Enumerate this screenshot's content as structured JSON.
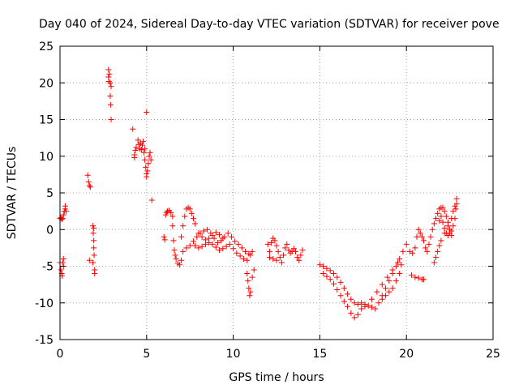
{
  "chart_data": {
    "type": "scatter",
    "title": "Day 040 of 2024, Sidereal Day-to-day VTEC variation (SDTVAR) for receiver pove",
    "xlabel": "GPS time / hours",
    "ylabel": "SDTVAR / TECUs",
    "xlim": [
      0,
      25
    ],
    "ylim": [
      -15,
      25
    ],
    "xticks": [
      0,
      5,
      10,
      15,
      20,
      25
    ],
    "yticks": [
      -15,
      -10,
      -5,
      0,
      5,
      10,
      15,
      20,
      25
    ],
    "xtick_labels": [
      "0",
      "5",
      "10",
      "15",
      "20",
      "25"
    ],
    "ytick_labels": [
      "-15",
      "-10",
      "-5",
      "0",
      "5",
      "10",
      "15",
      "20",
      "25"
    ],
    "grid": true,
    "marker": "+",
    "color": "#ff0000",
    "series": [
      {
        "name": "SDTVAR",
        "points": [
          [
            0.0,
            1.5
          ],
          [
            0.05,
            1.6
          ],
          [
            0.1,
            1.4
          ],
          [
            0.15,
            1.5
          ],
          [
            0.2,
            2.0
          ],
          [
            0.25,
            2.5
          ],
          [
            0.3,
            3.2
          ],
          [
            0.3,
            2.8
          ],
          [
            0.35,
            2.5
          ],
          [
            0.0,
            -4.5
          ],
          [
            0.05,
            -5.5
          ],
          [
            0.1,
            -6.0
          ],
          [
            0.12,
            -6.3
          ],
          [
            0.15,
            -4.5
          ],
          [
            0.2,
            -5.0
          ],
          [
            0.2,
            -4.0
          ],
          [
            1.6,
            7.4
          ],
          [
            1.65,
            6.5
          ],
          [
            1.7,
            6.0
          ],
          [
            1.75,
            5.8
          ],
          [
            1.7,
            -4.2
          ],
          [
            1.9,
            0.5
          ],
          [
            1.92,
            -0.5
          ],
          [
            1.95,
            -1.5
          ],
          [
            1.95,
            -2.5
          ],
          [
            1.97,
            -3.5
          ],
          [
            1.9,
            -4.5
          ],
          [
            2.0,
            -5.5
          ],
          [
            2.0,
            -6.0
          ],
          [
            1.95,
            0.2
          ],
          [
            2.8,
            21.8
          ],
          [
            2.85,
            21.2
          ],
          [
            2.8,
            20.8
          ],
          [
            2.82,
            20.2
          ],
          [
            2.9,
            20.0
          ],
          [
            2.95,
            19.5
          ],
          [
            2.9,
            18.2
          ],
          [
            2.92,
            17.0
          ],
          [
            2.95,
            15.0
          ],
          [
            4.2,
            13.7
          ],
          [
            4.3,
            10.2
          ],
          [
            4.35,
            10.8
          ],
          [
            4.4,
            11.2
          ],
          [
            4.5,
            12.2
          ],
          [
            4.55,
            11.6
          ],
          [
            4.6,
            11.0
          ],
          [
            4.65,
            11.8
          ],
          [
            4.7,
            10.9
          ],
          [
            4.75,
            11.5
          ],
          [
            4.8,
            12.0
          ],
          [
            4.85,
            10.5
          ],
          [
            4.9,
            9.5
          ],
          [
            4.95,
            8.5
          ],
          [
            5.0,
            7.6
          ],
          [
            5.05,
            8.0
          ],
          [
            5.1,
            9.0
          ],
          [
            5.15,
            10.0
          ],
          [
            5.2,
            10.5
          ],
          [
            5.25,
            9.5
          ],
          [
            5.0,
            16.0
          ],
          [
            5.3,
            4.0
          ],
          [
            4.3,
            9.8
          ],
          [
            4.9,
            11.0
          ],
          [
            5.0,
            7.2
          ],
          [
            6.0,
            -1.0
          ],
          [
            6.05,
            -1.4
          ],
          [
            6.1,
            2.0
          ],
          [
            6.15,
            2.3
          ],
          [
            6.2,
            2.5
          ],
          [
            6.3,
            2.6
          ],
          [
            6.4,
            2.3
          ],
          [
            6.5,
            1.8
          ],
          [
            6.5,
            0.5
          ],
          [
            6.55,
            -1.5
          ],
          [
            6.6,
            -2.8
          ],
          [
            6.65,
            -3.5
          ],
          [
            6.7,
            -4.0
          ],
          [
            6.8,
            -4.6
          ],
          [
            6.9,
            -4.8
          ],
          [
            7.0,
            -4.2
          ],
          [
            7.0,
            -1.0
          ],
          [
            7.1,
            0.5
          ],
          [
            7.2,
            1.8
          ],
          [
            7.3,
            2.8
          ],
          [
            7.4,
            3.0
          ],
          [
            7.5,
            2.8
          ],
          [
            7.6,
            2.2
          ],
          [
            7.7,
            1.5
          ],
          [
            7.8,
            0.8
          ],
          [
            7.1,
            -3.0
          ],
          [
            7.3,
            -2.5
          ],
          [
            7.5,
            -2.2
          ],
          [
            7.7,
            -1.6
          ],
          [
            7.9,
            -1.0
          ],
          [
            8.1,
            -0.5
          ],
          [
            8.3,
            -0.2
          ],
          [
            8.5,
            0.0
          ],
          [
            8.7,
            -0.5
          ],
          [
            8.9,
            -1.2
          ],
          [
            9.1,
            -1.8
          ],
          [
            9.3,
            -1.5
          ],
          [
            9.5,
            -1.0
          ],
          [
            9.7,
            -0.5
          ],
          [
            9.9,
            -1.0
          ],
          [
            10.1,
            -1.6
          ],
          [
            10.3,
            -2.0
          ],
          [
            10.5,
            -2.5
          ],
          [
            10.7,
            -3.0
          ],
          [
            10.9,
            -3.3
          ],
          [
            11.0,
            -3.5
          ],
          [
            11.1,
            -3.0
          ],
          [
            7.8,
            -2.2
          ],
          [
            8.0,
            -2.5
          ],
          [
            8.2,
            -2.3
          ],
          [
            8.4,
            -2.0
          ],
          [
            8.6,
            -1.8
          ],
          [
            8.8,
            -2.0
          ],
          [
            9.0,
            -2.4
          ],
          [
            9.2,
            -2.8
          ],
          [
            9.4,
            -2.6
          ],
          [
            9.6,
            -2.3
          ],
          [
            9.8,
            -2.0
          ],
          [
            10.0,
            -2.6
          ],
          [
            10.2,
            -3.2
          ],
          [
            10.4,
            -3.6
          ],
          [
            10.6,
            -4.0
          ],
          [
            10.8,
            -4.2
          ],
          [
            8.0,
            -0.5
          ],
          [
            8.2,
            -1.0
          ],
          [
            8.4,
            -1.4
          ],
          [
            8.6,
            -1.2
          ],
          [
            8.8,
            -0.8
          ],
          [
            9.0,
            -0.4
          ],
          [
            9.2,
            -0.7
          ],
          [
            9.4,
            -1.2
          ],
          [
            10.8,
            -6.0
          ],
          [
            10.85,
            -7.0
          ],
          [
            10.9,
            -8.0
          ],
          [
            10.95,
            -9.0
          ],
          [
            11.0,
            -8.5
          ],
          [
            11.1,
            -6.5
          ],
          [
            11.2,
            -5.5
          ],
          [
            12.0,
            -2.0
          ],
          [
            12.1,
            -3.0
          ],
          [
            12.2,
            -1.8
          ],
          [
            12.3,
            -1.2
          ],
          [
            12.4,
            -1.5
          ],
          [
            12.5,
            -2.2
          ],
          [
            12.6,
            -3.0
          ],
          [
            12.7,
            -3.8
          ],
          [
            12.8,
            -4.5
          ],
          [
            12.9,
            -3.5
          ],
          [
            13.0,
            -2.5
          ],
          [
            13.1,
            -2.0
          ],
          [
            13.2,
            -2.8
          ],
          [
            13.3,
            -3.2
          ],
          [
            13.4,
            -3.0
          ],
          [
            13.5,
            -2.6
          ],
          [
            13.6,
            -3.0
          ],
          [
            13.7,
            -3.8
          ],
          [
            13.8,
            -4.2
          ],
          [
            13.9,
            -3.5
          ],
          [
            14.0,
            -2.8
          ],
          [
            12.1,
            -3.8
          ],
          [
            12.3,
            -4.0
          ],
          [
            12.5,
            -4.2
          ],
          [
            15.0,
            -4.8
          ],
          [
            15.2,
            -5.0
          ],
          [
            15.4,
            -5.3
          ],
          [
            15.6,
            -5.6
          ],
          [
            15.8,
            -6.0
          ],
          [
            16.0,
            -6.5
          ],
          [
            16.2,
            -7.2
          ],
          [
            16.4,
            -8.0
          ],
          [
            16.6,
            -8.8
          ],
          [
            16.8,
            -9.5
          ],
          [
            17.0,
            -10.0
          ],
          [
            15.2,
            -6.0
          ],
          [
            15.4,
            -6.4
          ],
          [
            15.6,
            -6.8
          ],
          [
            15.8,
            -7.4
          ],
          [
            16.0,
            -8.2
          ],
          [
            16.2,
            -9.0
          ],
          [
            16.4,
            -9.8
          ],
          [
            16.6,
            -10.5
          ],
          [
            16.8,
            -11.4
          ],
          [
            17.0,
            -12.0
          ],
          [
            17.2,
            -11.6
          ],
          [
            17.4,
            -10.8
          ],
          [
            17.6,
            -10.5
          ],
          [
            17.8,
            -10.4
          ],
          [
            18.0,
            -10.6
          ],
          [
            18.2,
            -10.8
          ],
          [
            18.4,
            -10.0
          ],
          [
            18.6,
            -9.0
          ],
          [
            18.8,
            -8.0
          ],
          [
            19.0,
            -7.0
          ],
          [
            19.2,
            -6.0
          ],
          [
            19.4,
            -5.0
          ],
          [
            19.6,
            -4.0
          ],
          [
            19.8,
            -3.0
          ],
          [
            20.0,
            -2.0
          ],
          [
            17.2,
            -10.2
          ],
          [
            17.4,
            -10.0
          ],
          [
            17.6,
            -10.2
          ],
          [
            18.0,
            -9.5
          ],
          [
            18.3,
            -8.5
          ],
          [
            18.6,
            -7.5
          ],
          [
            18.9,
            -6.5
          ],
          [
            19.2,
            -5.5
          ],
          [
            19.5,
            -4.5
          ],
          [
            19.7,
            -4.8
          ],
          [
            19.6,
            -6.0
          ],
          [
            19.4,
            -7.0
          ],
          [
            19.2,
            -8.0
          ],
          [
            19.0,
            -8.5
          ],
          [
            18.8,
            -9.0
          ],
          [
            18.6,
            -9.5
          ],
          [
            20.2,
            -3.0
          ],
          [
            20.35,
            -3.2
          ],
          [
            20.5,
            -2.5
          ],
          [
            20.6,
            -1.0
          ],
          [
            20.7,
            0.0
          ],
          [
            20.8,
            -0.5
          ],
          [
            20.9,
            -1.0
          ],
          [
            21.0,
            -1.5
          ],
          [
            21.1,
            -2.5
          ],
          [
            21.2,
            -3.0
          ],
          [
            21.3,
            -2.0
          ],
          [
            21.4,
            -1.0
          ],
          [
            21.5,
            0.0
          ],
          [
            21.6,
            0.8
          ],
          [
            21.7,
            1.5
          ],
          [
            21.8,
            2.2
          ],
          [
            21.9,
            2.8
          ],
          [
            22.0,
            3.0
          ],
          [
            22.1,
            3.0
          ],
          [
            22.2,
            2.5
          ],
          [
            22.3,
            1.8
          ],
          [
            22.4,
            1.0
          ],
          [
            22.5,
            0.0
          ],
          [
            22.6,
            -0.8
          ],
          [
            20.3,
            -6.2
          ],
          [
            20.5,
            -6.5
          ],
          [
            20.7,
            -6.6
          ],
          [
            20.9,
            -6.8
          ],
          [
            21.0,
            -6.8
          ],
          [
            21.6,
            -4.5
          ],
          [
            21.7,
            -3.8
          ],
          [
            21.8,
            -3.0
          ],
          [
            21.9,
            -2.2
          ],
          [
            22.0,
            -1.5
          ],
          [
            22.2,
            -0.5
          ],
          [
            22.4,
            0.5
          ],
          [
            22.6,
            1.5
          ],
          [
            22.7,
            2.5
          ],
          [
            22.8,
            3.2
          ],
          [
            22.9,
            4.2
          ],
          [
            22.9,
            3.5
          ],
          [
            22.85,
            2.8
          ],
          [
            22.8,
            1.5
          ],
          [
            22.7,
            0.5
          ],
          [
            22.6,
            -0.2
          ],
          [
            22.5,
            -0.5
          ],
          [
            22.4,
            -0.8
          ],
          [
            22.3,
            -0.5
          ],
          [
            22.2,
            0.2
          ],
          [
            22.1,
            1.0
          ],
          [
            22.0,
            1.8
          ],
          [
            21.9,
            1.2
          ]
        ]
      }
    ]
  }
}
